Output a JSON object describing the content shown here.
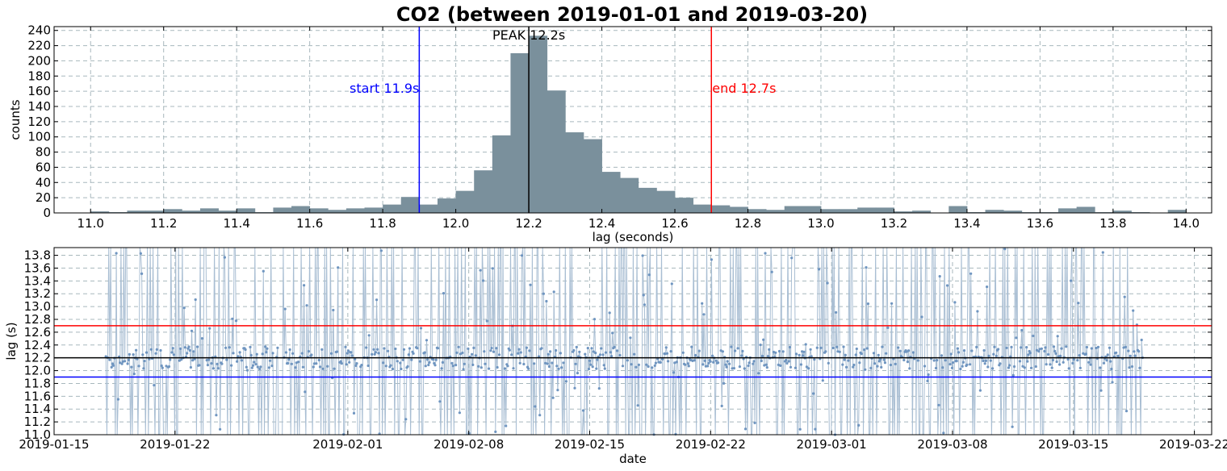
{
  "title": "CO2 (between 2019-01-01 and 2019-03-20)",
  "colors": {
    "bar": "#7a909c",
    "start": "#0000ff",
    "end": "#ff0000",
    "peak": "#000000",
    "scatter_line": "#a9bed3",
    "scatter_point": "#6f95c0",
    "grid": "#a8b8bd"
  },
  "chart_data": [
    {
      "type": "bar",
      "subtype": "histogram",
      "xlabel": "lag (seconds)",
      "ylabel": "counts",
      "xlim": [
        10.9,
        14.07
      ],
      "ylim": [
        0,
        245
      ],
      "xticks": [
        "11.0",
        "11.2",
        "11.4",
        "11.6",
        "11.8",
        "12.0",
        "12.2",
        "12.4",
        "12.6",
        "12.8",
        "13.0",
        "13.2",
        "13.4",
        "13.6",
        "13.8",
        "14.0"
      ],
      "yticks": [
        "0",
        "20",
        "40",
        "60",
        "80",
        "100",
        "120",
        "140",
        "160",
        "180",
        "200",
        "220",
        "240"
      ],
      "grid": true,
      "bin_width": 0.05,
      "bin_starts": [
        10.95,
        11.0,
        11.05,
        11.1,
        11.15,
        11.2,
        11.25,
        11.3,
        11.35,
        11.4,
        11.45,
        11.5,
        11.55,
        11.6,
        11.65,
        11.7,
        11.75,
        11.8,
        11.85,
        11.9,
        11.95,
        12.0,
        12.05,
        12.1,
        12.15,
        12.2,
        12.25,
        12.3,
        12.35,
        12.4,
        12.45,
        12.5,
        12.55,
        12.6,
        12.65,
        12.7,
        12.75,
        12.8,
        12.85,
        12.9,
        12.95,
        13.0,
        13.05,
        13.1,
        13.15,
        13.2,
        13.25,
        13.3,
        13.35,
        13.4,
        13.45,
        13.5,
        13.55,
        13.6,
        13.65,
        13.7,
        13.75,
        13.8,
        13.85,
        13.9,
        13.95,
        14.0
      ],
      "counts": [
        0,
        2,
        1,
        3,
        3,
        5,
        3,
        6,
        3,
        6,
        1,
        7,
        9,
        6,
        4,
        6,
        7,
        11,
        21,
        11,
        19,
        29,
        56,
        102,
        210,
        233,
        161,
        106,
        97,
        54,
        46,
        33,
        29,
        20,
        11,
        10,
        8,
        5,
        4,
        9,
        9,
        5,
        5,
        7,
        7,
        2,
        3,
        0,
        9,
        1,
        4,
        3,
        1,
        1,
        6,
        8,
        1,
        3,
        1,
        0,
        4,
        0
      ],
      "annotations": [
        {
          "text": "start 11.9s",
          "x": 11.9,
          "color": "#0000ff"
        },
        {
          "text": "end 12.7s",
          "x": 12.7,
          "color": "#ff0000"
        },
        {
          "text": "PEAK 12.2s",
          "x": 12.2,
          "color": "#000000"
        }
      ]
    },
    {
      "type": "scatter",
      "xlabel": "date",
      "ylabel": "lag (s)",
      "xlim": [
        "2019-01-15",
        "2019-03-23"
      ],
      "ylim": [
        11.0,
        13.92
      ],
      "xticks": [
        "2019-01-15",
        "2019-01-22",
        "2019-02-01",
        "2019-02-08",
        "2019-02-15",
        "2019-02-22",
        "2019-03-01",
        "2019-03-08",
        "2019-03-15",
        "2019-03-22"
      ],
      "yticks": [
        "11.0",
        "11.2",
        "11.4",
        "11.6",
        "11.8",
        "12.0",
        "12.2",
        "12.4",
        "12.6",
        "12.8",
        "13.0",
        "13.2",
        "13.4",
        "13.6",
        "13.8"
      ],
      "grid": true,
      "date_range": [
        "2019-01-18",
        "2019-03-19"
      ],
      "typical_lag": 12.2,
      "hlines": [
        {
          "y": 12.7,
          "color": "#ff0000"
        },
        {
          "y": 12.2,
          "color": "#000000"
        },
        {
          "y": 11.9,
          "color": "#0000ff"
        }
      ]
    }
  ]
}
